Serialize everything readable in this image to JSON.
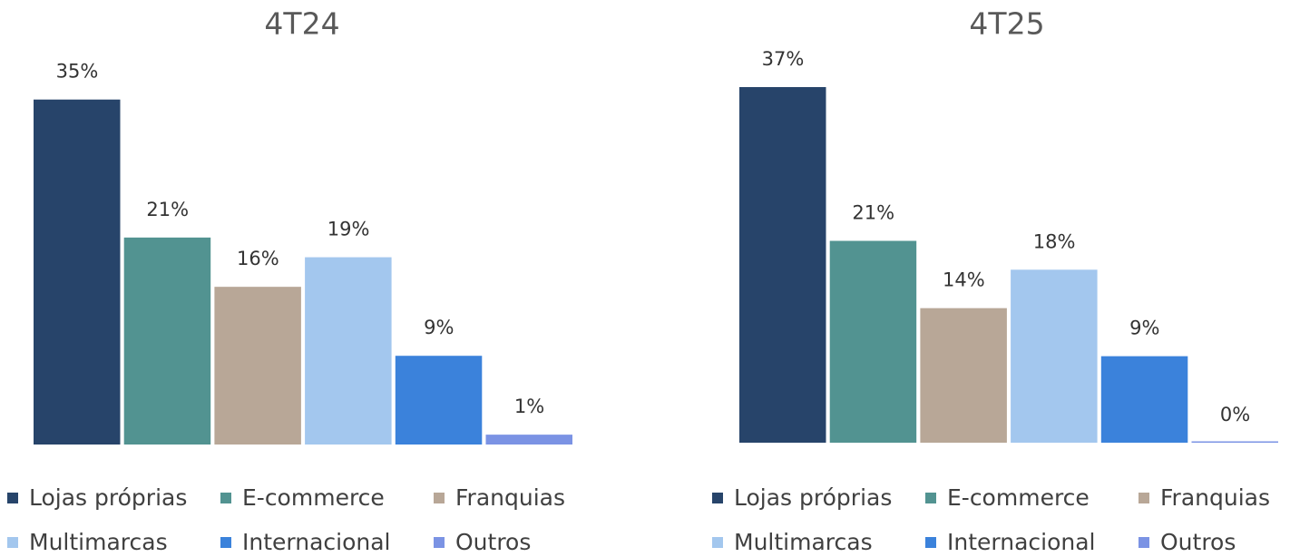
{
  "chart_data": [
    {
      "type": "bar",
      "title": "4T24",
      "categories": [
        "Lojas próprias",
        "E-commerce",
        "Franquias",
        "Multimarcas",
        "Internacional",
        "Outros"
      ],
      "values": [
        35,
        21,
        16,
        19,
        9,
        1
      ],
      "value_labels": [
        "35%",
        "21%",
        "16%",
        "19%",
        "9%",
        "1%"
      ],
      "colors": [
        "#27446a",
        "#529391",
        "#b8a797",
        "#a3c7ee",
        "#3b82db",
        "#7b93e4"
      ],
      "ylim": [
        0,
        37
      ]
    },
    {
      "type": "bar",
      "title": "4T25",
      "categories": [
        "Lojas próprias",
        "E-commerce",
        "Franquias",
        "Multimarcas",
        "Internacional",
        "Outros"
      ],
      "values": [
        37,
        21,
        14,
        18,
        9,
        0
      ],
      "value_labels": [
        "37%",
        "21%",
        "14%",
        "18%",
        "9%",
        "0%"
      ],
      "colors": [
        "#27446a",
        "#529391",
        "#b8a797",
        "#a3c7ee",
        "#3b82db",
        "#7b93e4"
      ],
      "ylim": [
        0,
        37
      ]
    }
  ]
}
